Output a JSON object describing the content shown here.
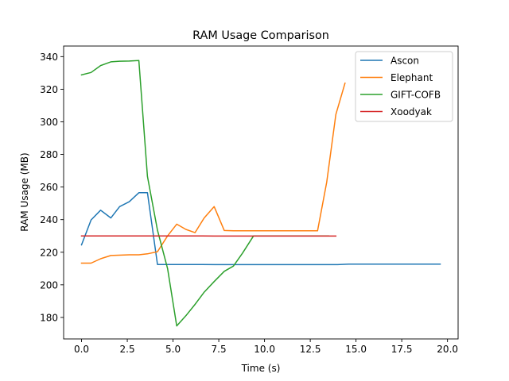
{
  "chart_data": {
    "type": "line",
    "title": "RAM Usage Comparison",
    "xlabel": "Time (s)",
    "ylabel": "RAM Usage (MB)",
    "xlim": [
      -0.98,
      20.58
    ],
    "ylim": [
      166.8,
      346.5
    ],
    "xticks": [
      0.0,
      2.5,
      5.0,
      7.5,
      10.0,
      12.5,
      15.0,
      17.5,
      20.0
    ],
    "xtick_labels": [
      "0.0",
      "2.5",
      "5.0",
      "7.5",
      "10.0",
      "12.5",
      "15.0",
      "17.5",
      "20.0"
    ],
    "yticks": [
      180,
      200,
      220,
      240,
      260,
      280,
      300,
      320,
      340
    ],
    "ytick_labels": [
      "180",
      "200",
      "220",
      "240",
      "260",
      "280",
      "300",
      "320",
      "340"
    ],
    "grid": false,
    "legend_position": "top-right",
    "series": [
      {
        "name": "Ascon",
        "color": "#1f77b4",
        "x": [
          0.0,
          0.52,
          1.04,
          1.6,
          2.08,
          2.61,
          3.13,
          3.6,
          4.15,
          5.2,
          6.2,
          7.3,
          8.3,
          9.4,
          10.4,
          11.4,
          12.5,
          13.5,
          14.0,
          14.6,
          15.6,
          16.6,
          17.7,
          18.7,
          19.6
        ],
        "y": [
          224.5,
          239.8,
          245.8,
          241.0,
          248.0,
          251.0,
          256.5,
          256.5,
          212.5,
          212.5,
          212.5,
          212.4,
          212.4,
          212.4,
          212.4,
          212.4,
          212.4,
          212.4,
          212.4,
          212.7,
          212.7,
          212.7,
          212.7,
          212.7,
          212.7
        ]
      },
      {
        "name": "Elephant",
        "color": "#ff7f0e",
        "x": [
          0.0,
          0.52,
          1.04,
          1.6,
          2.61,
          3.13,
          3.6,
          4.15,
          4.7,
          5.2,
          5.7,
          6.2,
          6.7,
          7.25,
          7.8,
          8.3,
          9.4,
          10.4,
          11.4,
          12.5,
          12.9,
          13.4,
          13.9,
          14.4
        ],
        "y": [
          213.3,
          213.3,
          216.0,
          218.0,
          218.4,
          218.4,
          219.0,
          220.3,
          230.0,
          237.2,
          234.0,
          232.0,
          241.0,
          248.0,
          233.3,
          233.2,
          233.2,
          233.2,
          233.2,
          233.2,
          233.2,
          263.0,
          304.5,
          323.7
        ]
      },
      {
        "name": "GIFT-COFB",
        "color": "#2ca02c",
        "x": [
          0.0,
          0.52,
          1.04,
          1.6,
          2.08,
          2.61,
          3.13,
          3.6,
          4.15,
          4.7,
          5.2,
          5.7,
          6.2,
          6.7,
          7.25,
          7.8,
          8.3,
          8.8,
          9.4,
          10.4,
          11.4,
          12.5,
          13.5
        ],
        "y": [
          328.8,
          330.3,
          334.5,
          336.8,
          337.2,
          337.3,
          337.6,
          266.5,
          233.5,
          210.0,
          174.8,
          181.0,
          188.0,
          195.5,
          202.0,
          208.3,
          211.5,
          219.5,
          230.0,
          230.0,
          230.0,
          230.0,
          230.0
        ]
      },
      {
        "name": "Xoodyak",
        "color": "#d62728",
        "x": [
          0.0,
          1.04,
          2.08,
          3.13,
          4.15,
          5.2,
          6.2,
          7.25,
          8.3,
          9.4,
          10.4,
          11.4,
          12.5,
          13.5,
          13.9
        ],
        "y": [
          230.0,
          230.0,
          230.0,
          230.0,
          230.0,
          230.0,
          230.0,
          229.9,
          229.9,
          229.9,
          229.9,
          229.9,
          229.9,
          229.9,
          229.9
        ]
      }
    ]
  }
}
